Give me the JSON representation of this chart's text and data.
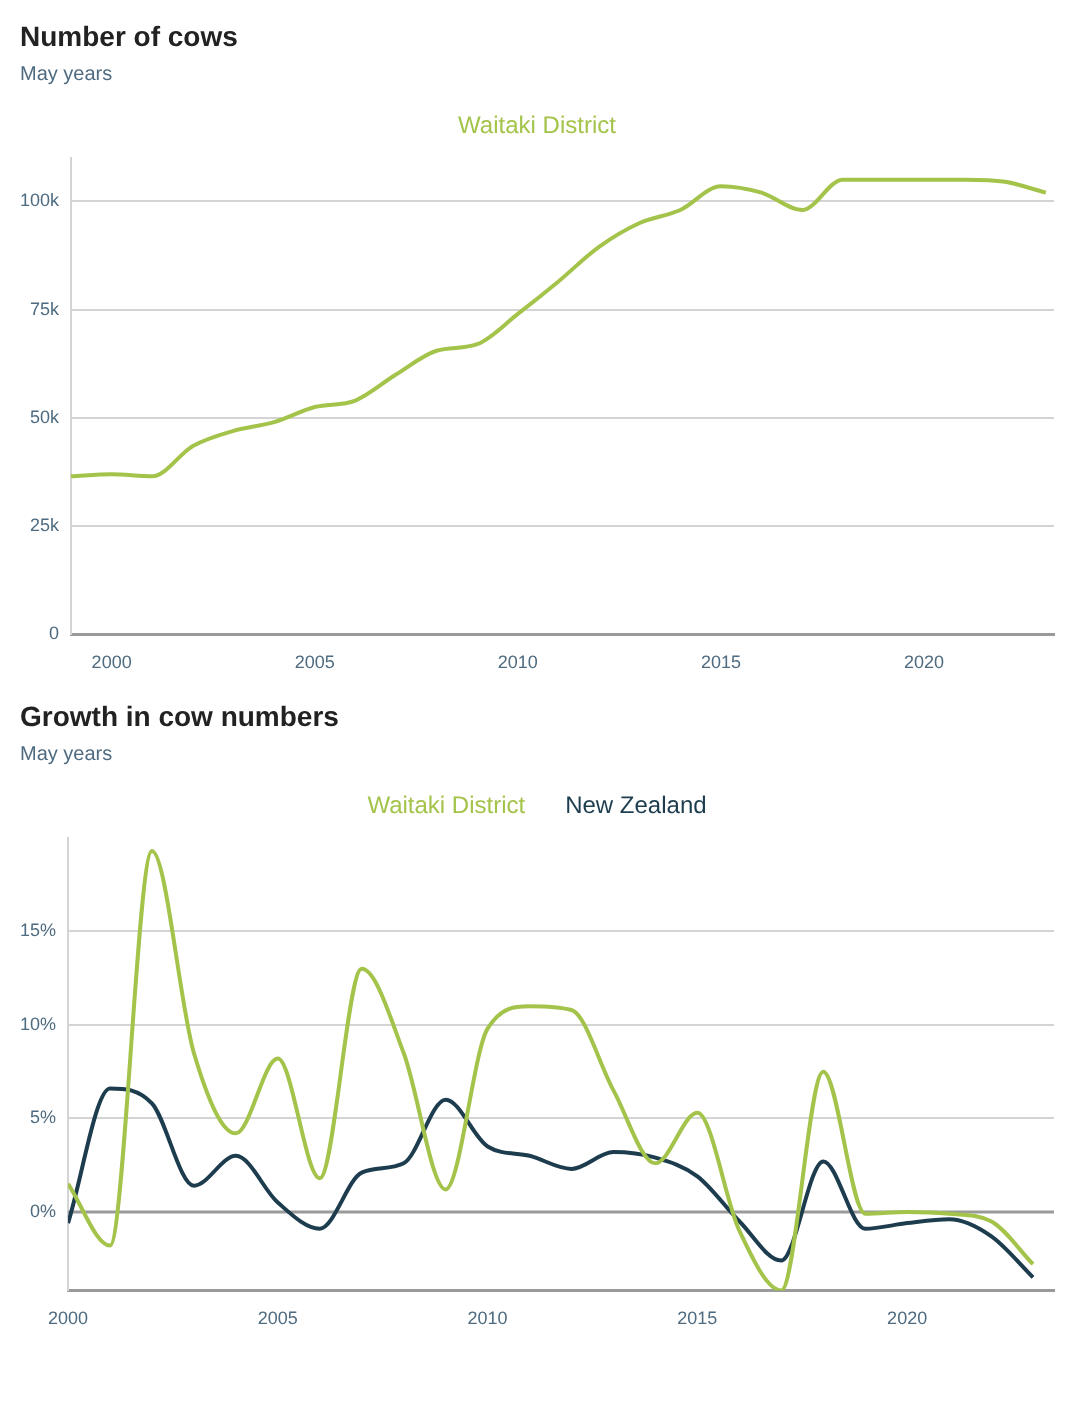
{
  "chart_data": [
    {
      "type": "line",
      "title": "Number of cows",
      "subtitle": "May years",
      "legend": "top",
      "grid": "y",
      "marker": "none",
      "line_style": "solid",
      "x": [
        1999,
        2000,
        2001,
        2002,
        2003,
        2004,
        2005,
        2006,
        2007,
        2008,
        2009,
        2010,
        2011,
        2012,
        2013,
        2014,
        2015,
        2016,
        2017,
        2018,
        2019,
        2020,
        2021,
        2022,
        2023
      ],
      "series": [
        {
          "name": "Waitaki District",
          "color": "#a4c34a",
          "values": [
            36500,
            37000,
            36500,
            43500,
            47000,
            49000,
            52500,
            54000,
            60000,
            65500,
            67000,
            74000,
            81500,
            89500,
            95000,
            98000,
            103500,
            102000,
            98000,
            105000,
            105000,
            105000,
            105000,
            104500,
            102000
          ]
        }
      ],
      "xlim": [
        1999,
        2023.2
      ],
      "xticks": [
        2000,
        2005,
        2010,
        2015,
        2020
      ],
      "ylim": [
        0,
        110000
      ],
      "yticks": [
        0,
        {
          "value": 25000,
          "label": "25k"
        },
        {
          "value": 50000,
          "label": "50k"
        },
        {
          "value": 75000,
          "label": "75k"
        },
        {
          "value": 100000,
          "label": "100k"
        }
      ]
    },
    {
      "type": "line",
      "title": "Growth in cow numbers",
      "subtitle": "May years",
      "legend": "top",
      "grid": "y",
      "marker": "none",
      "line_style": "solid",
      "x": [
        2000,
        2001,
        2002,
        2003,
        2004,
        2005,
        2006,
        2007,
        2008,
        2009,
        2010,
        2011,
        2012,
        2013,
        2014,
        2015,
        2016,
        2017,
        2018,
        2019,
        2020,
        2021,
        2022,
        2023
      ],
      "series": [
        {
          "name": "Waitaki District",
          "color": "#a4c34a",
          "values": [
            1.5,
            -1.8,
            19.3,
            8.5,
            4.2,
            8.2,
            1.8,
            13,
            8.5,
            1.2,
            9.8,
            11,
            10.8,
            6.5,
            2.6,
            5.3,
            -1,
            -4.2,
            7.5,
            -0.1,
            0,
            -0.1,
            -0.5,
            -2.8
          ]
        },
        {
          "name": "New Zealand",
          "color": "#1d3d4f",
          "values": [
            -0.6,
            6.6,
            5.8,
            1.4,
            3,
            0.5,
            -0.9,
            2.1,
            2.6,
            6,
            3.5,
            3,
            2.3,
            3.2,
            2.9,
            1.9,
            -0.5,
            -2.6,
            2.7,
            -0.9,
            -0.6,
            -0.4,
            -1.3,
            -3.5
          ]
        }
      ],
      "xlim": [
        2000,
        2023.5
      ],
      "xticks": [
        2000,
        2005,
        2010,
        2015,
        2020
      ],
      "ylim": [
        -4.2,
        20
      ],
      "yticks": [
        {
          "value": 0,
          "label": "0%"
        },
        {
          "value": 5,
          "label": "5%"
        },
        {
          "value": 10,
          "label": "10%"
        },
        {
          "value": 15,
          "label": "15%"
        }
      ],
      "ref_lines": [
        {
          "axis": "y",
          "value": 0,
          "color": "#9a9a9a"
        }
      ]
    }
  ]
}
